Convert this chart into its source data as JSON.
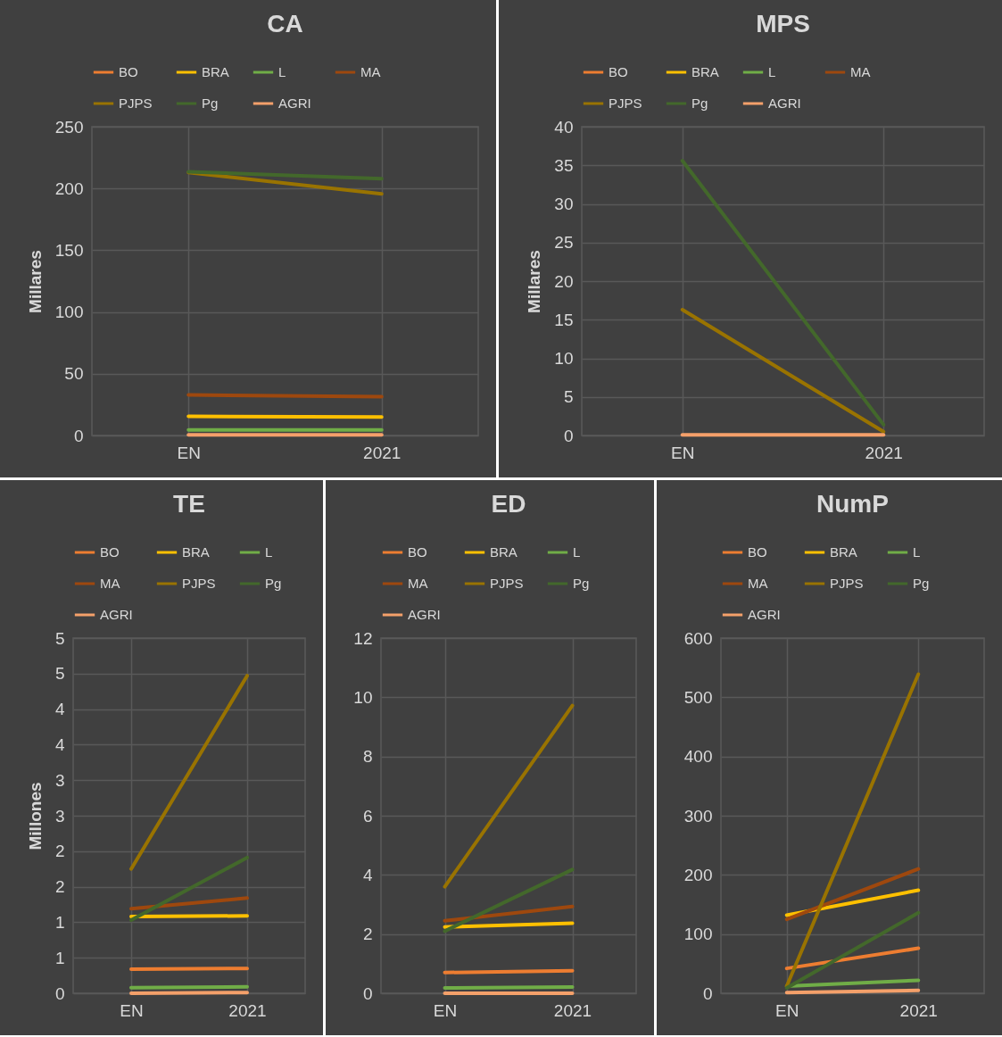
{
  "chart_data": [
    {
      "type": "line",
      "title": "CA",
      "ylabel": "Millares",
      "categories": [
        "EN",
        "2021"
      ],
      "ylim": [
        0,
        250
      ],
      "yticks": [
        0,
        50,
        100,
        150,
        200,
        250
      ],
      "grid": true,
      "legend": "top",
      "series": [
        {
          "name": "BO",
          "color": "#ed7d31",
          "values": [
            null,
            null
          ]
        },
        {
          "name": "BRA",
          "color": "#ffc000",
          "values": [
            15.5,
            15
          ]
        },
        {
          "name": "L",
          "color": "#70ad47",
          "values": [
            4.5,
            4.5
          ]
        },
        {
          "name": "MA",
          "color": "#9e480e",
          "values": [
            32.9,
            31.4
          ]
        },
        {
          "name": "PJPS",
          "color": "#997300",
          "values": [
            213,
            195.6
          ]
        },
        {
          "name": "Pg",
          "color": "#43682b",
          "values": [
            213.6,
            208
          ]
        },
        {
          "name": "AGRI",
          "color": "#f4a06a",
          "values": [
            0.5,
            0.5
          ]
        }
      ]
    },
    {
      "type": "line",
      "title": "MPS",
      "ylabel": "Millares",
      "categories": [
        "EN",
        "2021"
      ],
      "ylim": [
        0,
        40
      ],
      "yticks": [
        0,
        5,
        10,
        15,
        20,
        25,
        30,
        35,
        40
      ],
      "grid": true,
      "legend": "top",
      "series": [
        {
          "name": "BO",
          "color": "#ed7d31",
          "values": [
            null,
            null
          ]
        },
        {
          "name": "BRA",
          "color": "#ffc000",
          "values": [
            null,
            null
          ]
        },
        {
          "name": "L",
          "color": "#70ad47",
          "values": [
            null,
            null
          ]
        },
        {
          "name": "MA",
          "color": "#9e480e",
          "values": [
            null,
            null
          ]
        },
        {
          "name": "PJPS",
          "color": "#997300",
          "values": [
            16.3,
            0.5
          ]
        },
        {
          "name": "Pg",
          "color": "#43682b",
          "values": [
            35.6,
            1.4
          ]
        },
        {
          "name": "AGRI",
          "color": "#f4a06a",
          "values": [
            0.1,
            0.1
          ]
        }
      ]
    },
    {
      "type": "line",
      "title": "TE",
      "ylabel": "Millones",
      "categories": [
        "EN",
        "2021"
      ],
      "ylim": [
        0,
        5
      ],
      "yticks": [
        0,
        {
          "value": 0.5,
          "label": "1"
        },
        1,
        {
          "value": 1.5,
          "label": "2"
        },
        2,
        {
          "value": 2.5,
          "label": "3"
        },
        3,
        {
          "value": 3.5,
          "label": "4"
        },
        4,
        {
          "value": 4.5,
          "label": "5"
        },
        5
      ],
      "grid": true,
      "legend": "top",
      "series": [
        {
          "name": "BO",
          "color": "#ed7d31",
          "values": [
            0.34,
            0.35
          ]
        },
        {
          "name": "BRA",
          "color": "#ffc000",
          "values": [
            1.08,
            1.09
          ]
        },
        {
          "name": "L",
          "color": "#70ad47",
          "values": [
            0.08,
            0.09
          ]
        },
        {
          "name": "MA",
          "color": "#9e480e",
          "values": [
            1.19,
            1.34
          ]
        },
        {
          "name": "PJPS",
          "color": "#997300",
          "values": [
            1.75,
            4.47
          ]
        },
        {
          "name": "Pg",
          "color": "#43682b",
          "values": [
            1.03,
            1.91
          ]
        },
        {
          "name": "AGRI",
          "color": "#f4a06a",
          "values": [
            0,
            0.01
          ]
        }
      ]
    },
    {
      "type": "line",
      "title": "ED",
      "categories": [
        "EN",
        "2021"
      ],
      "ylim": [
        0,
        12
      ],
      "yticks": [
        0,
        2,
        4,
        6,
        8,
        10,
        12
      ],
      "grid": true,
      "legend": "top",
      "series": [
        {
          "name": "BO",
          "color": "#ed7d31",
          "values": [
            0.7,
            0.76
          ]
        },
        {
          "name": "BRA",
          "color": "#ffc000",
          "values": [
            2.24,
            2.37
          ]
        },
        {
          "name": "L",
          "color": "#70ad47",
          "values": [
            0.18,
            0.21
          ]
        },
        {
          "name": "MA",
          "color": "#9e480e",
          "values": [
            2.45,
            2.93
          ]
        },
        {
          "name": "PJPS",
          "color": "#997300",
          "values": [
            3.6,
            9.72
          ]
        },
        {
          "name": "Pg",
          "color": "#43682b",
          "values": [
            2.1,
            4.18
          ]
        },
        {
          "name": "AGRI",
          "color": "#f4a06a",
          "values": [
            0,
            0
          ]
        }
      ]
    },
    {
      "type": "line",
      "title": "NumP",
      "categories": [
        "EN",
        "2021"
      ],
      "ylim": [
        0,
        600
      ],
      "yticks": [
        0,
        100,
        200,
        300,
        400,
        500,
        600
      ],
      "grid": true,
      "legend": "top",
      "series": [
        {
          "name": "BO",
          "color": "#ed7d31",
          "values": [
            42,
            76
          ]
        },
        {
          "name": "BRA",
          "color": "#ffc000",
          "values": [
            132,
            174
          ]
        },
        {
          "name": "L",
          "color": "#70ad47",
          "values": [
            12,
            22
          ]
        },
        {
          "name": "MA",
          "color": "#9e480e",
          "values": [
            125,
            210
          ]
        },
        {
          "name": "PJPS",
          "color": "#997300",
          "values": [
            12,
            539
          ]
        },
        {
          "name": "Pg",
          "color": "#43682b",
          "values": [
            9,
            136
          ]
        },
        {
          "name": "AGRI",
          "color": "#f4a06a",
          "values": [
            1,
            5
          ]
        }
      ]
    }
  ]
}
